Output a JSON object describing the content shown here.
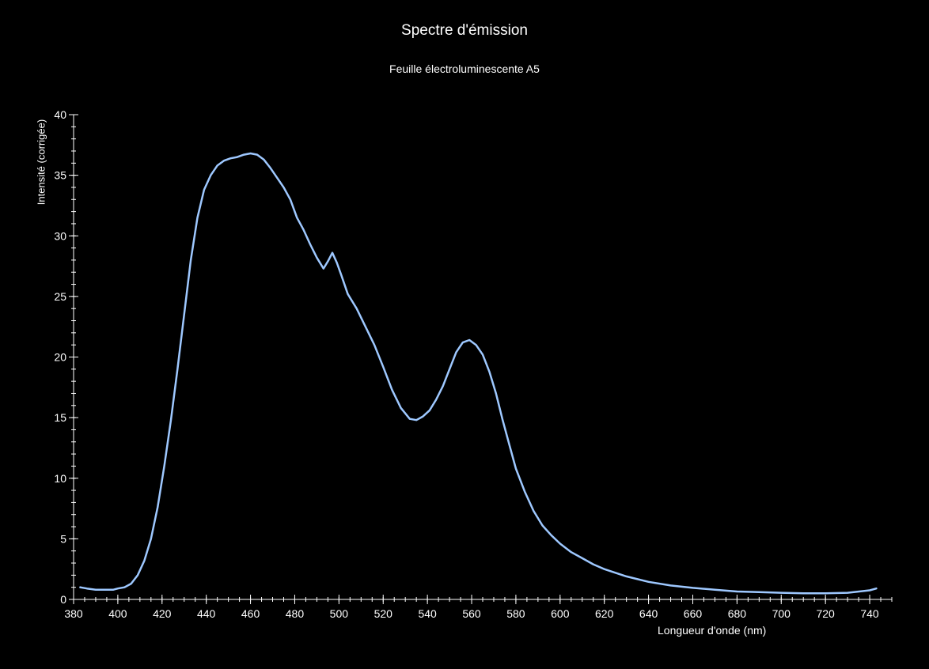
{
  "chart_data": {
    "type": "line",
    "title": "Spectre d'émission",
    "subtitle": "Feuille électroluminescente A5",
    "xlabel": "Longueur d'onde (nm)",
    "ylabel": "Intensité (corrigée)",
    "xlim": [
      380,
      750
    ],
    "ylim": [
      0,
      40
    ],
    "x_ticks": [
      380,
      400,
      420,
      440,
      460,
      480,
      500,
      520,
      540,
      560,
      580,
      600,
      620,
      640,
      660,
      680,
      700,
      720,
      740
    ],
    "y_ticks": [
      0,
      5,
      10,
      15,
      20,
      25,
      30,
      35,
      40
    ],
    "grid": false,
    "line_color": "#9ec8ff",
    "axis_color": "#ffffff",
    "background": "#000000",
    "series": [
      {
        "x": [
          383,
          386,
          390,
          394,
          398,
          400,
          403,
          406,
          409,
          412,
          415,
          418,
          421,
          424,
          427,
          430,
          433,
          436,
          439,
          442,
          445,
          448,
          451,
          454,
          457,
          460,
          463,
          466,
          469,
          472,
          475,
          478,
          481,
          484,
          487,
          490,
          493,
          495,
          497,
          499,
          501,
          504,
          508,
          512,
          516,
          520,
          524,
          528,
          532,
          535,
          538,
          541,
          544,
          547,
          550,
          553,
          556,
          559,
          562,
          565,
          568,
          571,
          574,
          577,
          580,
          584,
          588,
          592,
          596,
          600,
          605,
          610,
          615,
          620,
          630,
          640,
          650,
          660,
          670,
          680,
          690,
          700,
          710,
          720,
          730,
          740,
          743
        ],
        "values": [
          1.0,
          0.9,
          0.8,
          0.8,
          0.8,
          0.9,
          1.0,
          1.3,
          2.0,
          3.2,
          5.0,
          7.6,
          11.0,
          14.8,
          19.0,
          23.5,
          28.0,
          31.5,
          33.8,
          35.0,
          35.8,
          36.2,
          36.4,
          36.5,
          36.7,
          36.8,
          36.7,
          36.3,
          35.6,
          34.8,
          34.0,
          33.0,
          31.5,
          30.5,
          29.3,
          28.2,
          27.3,
          27.9,
          28.6,
          27.8,
          26.8,
          25.2,
          24.0,
          22.5,
          21.0,
          19.2,
          17.3,
          15.8,
          14.9,
          14.8,
          15.1,
          15.6,
          16.5,
          17.6,
          19.0,
          20.4,
          21.2,
          21.4,
          21.0,
          20.2,
          18.8,
          17.0,
          14.8,
          12.8,
          10.8,
          8.9,
          7.3,
          6.1,
          5.3,
          4.6,
          3.9,
          3.4,
          2.9,
          2.5,
          1.9,
          1.45,
          1.15,
          0.95,
          0.8,
          0.65,
          0.6,
          0.55,
          0.5,
          0.5,
          0.55,
          0.75,
          0.9
        ]
      }
    ]
  }
}
